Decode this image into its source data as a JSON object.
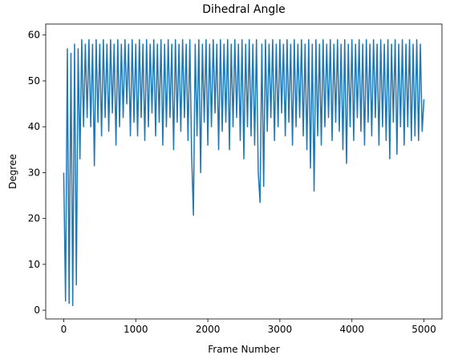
{
  "chart_data": {
    "type": "line",
    "title": "Dihedral Angle",
    "x_label": "Frame Number",
    "y_label": "Degree",
    "color": "#1f77b4",
    "xlim": [
      -250,
      5250
    ],
    "xticks": [
      0,
      1000,
      2000,
      3000,
      4000,
      5000
    ],
    "ylim": [
      -1.9,
      62.4
    ],
    "yticks": [
      0,
      10,
      20,
      30,
      40,
      50,
      60
    ],
    "x": [
      0,
      25,
      50,
      75,
      100,
      125,
      150,
      175,
      200,
      225,
      250,
      275,
      300,
      325,
      350,
      375,
      400,
      425,
      450,
      475,
      500,
      525,
      550,
      575,
      600,
      625,
      650,
      675,
      700,
      725,
      750,
      775,
      800,
      825,
      850,
      875,
      900,
      925,
      950,
      975,
      1000,
      1025,
      1050,
      1075,
      1100,
      1125,
      1150,
      1175,
      1200,
      1225,
      1250,
      1275,
      1300,
      1325,
      1350,
      1375,
      1400,
      1425,
      1450,
      1475,
      1500,
      1525,
      1550,
      1575,
      1600,
      1625,
      1650,
      1675,
      1700,
      1725,
      1750,
      1775,
      1800,
      1825,
      1850,
      1875,
      1900,
      1925,
      1950,
      1975,
      2000,
      2025,
      2050,
      2075,
      2100,
      2125,
      2150,
      2175,
      2200,
      2225,
      2250,
      2275,
      2300,
      2325,
      2350,
      2375,
      2400,
      2425,
      2450,
      2475,
      2500,
      2525,
      2550,
      2575,
      2600,
      2625,
      2650,
      2675,
      2700,
      2725,
      2750,
      2775,
      2800,
      2825,
      2850,
      2875,
      2900,
      2925,
      2950,
      2975,
      3000,
      3025,
      3050,
      3075,
      3100,
      3125,
      3150,
      3175,
      3200,
      3225,
      3250,
      3275,
      3300,
      3325,
      3350,
      3375,
      3400,
      3425,
      3450,
      3475,
      3500,
      3525,
      3550,
      3575,
      3600,
      3625,
      3650,
      3675,
      3700,
      3725,
      3750,
      3775,
      3800,
      3825,
      3850,
      3875,
      3900,
      3925,
      3950,
      3975,
      4000,
      4025,
      4050,
      4075,
      4100,
      4125,
      4150,
      4175,
      4200,
      4225,
      4250,
      4275,
      4300,
      4325,
      4350,
      4375,
      4400,
      4425,
      4450,
      4475,
      4500,
      4525,
      4550,
      4575,
      4600,
      4625,
      4650,
      4675,
      4700,
      4725,
      4750,
      4775,
      4800,
      4825,
      4850,
      4875,
      4900,
      4925,
      4950,
      4975,
      5000
    ],
    "values": [
      30,
      2,
      57,
      1.5,
      56,
      1,
      58,
      5.5,
      57,
      33,
      59,
      40,
      58,
      42,
      59,
      40,
      58,
      31.5,
      59,
      41,
      58,
      38,
      59,
      42,
      58,
      39,
      59,
      43,
      58,
      36,
      59,
      40,
      58,
      42,
      59,
      45,
      58,
      38,
      59,
      41,
      58,
      38,
      59,
      42,
      58,
      37,
      59,
      40,
      58,
      43,
      59,
      38,
      58,
      41,
      59,
      36,
      58,
      40,
      59,
      42,
      58,
      35,
      59,
      41,
      58,
      39,
      59,
      42,
      58,
      37,
      59,
      34,
      20.7,
      58,
      38,
      59,
      30,
      58,
      41,
      59,
      36,
      58,
      40,
      59,
      43,
      58,
      35,
      59,
      39,
      58,
      41,
      59,
      35,
      58,
      40,
      59,
      42,
      58,
      37,
      59,
      33,
      58,
      40,
      59,
      38,
      58,
      36,
      59,
      30,
      23.5,
      58,
      27,
      59,
      39,
      58,
      42,
      59,
      37,
      58,
      40,
      59,
      43,
      58,
      38,
      59,
      41,
      58,
      36,
      59,
      40,
      58,
      42,
      59,
      38,
      58,
      35,
      59,
      31,
      58,
      26,
      59,
      38,
      58,
      36,
      59,
      40,
      58,
      42,
      59,
      37,
      58,
      41,
      59,
      39,
      58,
      35,
      59,
      32,
      58,
      40,
      59,
      37,
      58,
      42,
      59,
      39,
      58,
      36,
      59,
      41,
      58,
      38,
      59,
      42,
      58,
      36,
      59,
      40,
      58,
      37,
      59,
      33,
      58,
      41,
      59,
      34,
      58,
      40,
      59,
      36,
      58,
      40,
      59,
      37,
      58,
      38,
      59,
      37,
      58,
      39,
      46
    ]
  }
}
